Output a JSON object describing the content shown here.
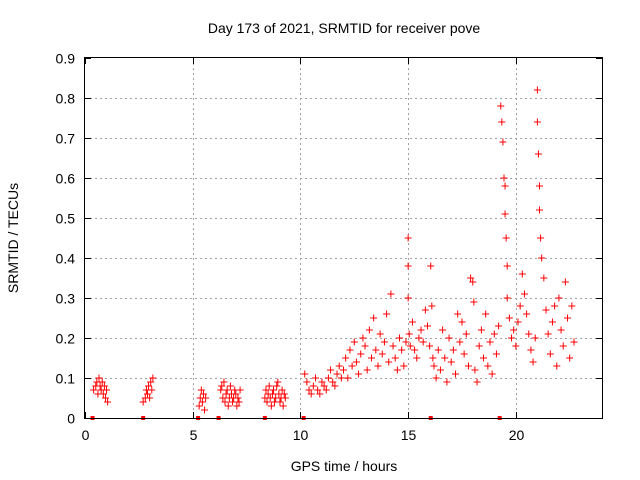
{
  "chart_data": {
    "type": "scatter",
    "title": "Day 173 of 2021, SRMTID for receiver pove",
    "xlabel": "GPS time / hours",
    "ylabel": "SRMTID / TECUs",
    "xlim": [
      0,
      24
    ],
    "ylim": [
      0,
      0.9
    ],
    "x_ticks": [
      0,
      5,
      10,
      15,
      20
    ],
    "x_tick_labels": [
      "0",
      "5",
      "10",
      "15",
      "20"
    ],
    "y_ticks": [
      0,
      0.1,
      0.2,
      0.3,
      0.4,
      0.5,
      0.6,
      0.7,
      0.8,
      0.9
    ],
    "y_tick_labels": [
      "0",
      "0.1",
      "0.2",
      "0.3",
      "0.4",
      "0.5",
      "0.6",
      "0.7",
      "0.8",
      "0.9"
    ],
    "grid": true,
    "marker": "plus",
    "color": "#ff0000",
    "series": [
      {
        "name": "SRMTID",
        "x": [
          0.4,
          0.5,
          0.55,
          0.6,
          0.65,
          0.7,
          0.75,
          0.8,
          0.85,
          0.9,
          0.95,
          1.0,
          1.05,
          2.7,
          2.8,
          2.85,
          2.9,
          2.95,
          3.0,
          3.05,
          3.1,
          3.15,
          5.3,
          5.35,
          5.4,
          5.45,
          5.5,
          5.55,
          5.6,
          6.3,
          6.35,
          6.4,
          6.45,
          6.5,
          6.55,
          6.6,
          6.65,
          6.7,
          6.75,
          6.8,
          6.85,
          6.9,
          6.95,
          7.0,
          7.05,
          7.1,
          7.15,
          7.2,
          8.35,
          8.4,
          8.45,
          8.5,
          8.55,
          8.6,
          8.65,
          8.7,
          8.75,
          8.8,
          8.85,
          8.9,
          8.95,
          9.0,
          9.05,
          9.1,
          9.15,
          9.2,
          9.25,
          9.3,
          10.2,
          10.3,
          10.4,
          10.5,
          10.6,
          10.7,
          10.8,
          10.9,
          11.0,
          11.1,
          11.2,
          11.3,
          11.4,
          11.5,
          11.6,
          11.7,
          11.8,
          11.9,
          12.0,
          12.1,
          12.2,
          12.3,
          12.4,
          12.5,
          12.6,
          12.7,
          12.8,
          12.9,
          13.0,
          13.1,
          13.2,
          13.3,
          13.4,
          13.5,
          13.6,
          13.7,
          13.8,
          13.9,
          14.0,
          14.1,
          14.2,
          14.3,
          14.4,
          14.5,
          14.6,
          14.7,
          14.8,
          14.9,
          15.0,
          15.0,
          15.0,
          15.05,
          15.1,
          15.2,
          15.3,
          15.4,
          15.5,
          15.6,
          15.7,
          15.8,
          15.9,
          16.0,
          16.05,
          16.1,
          16.15,
          16.2,
          16.3,
          16.4,
          16.5,
          16.6,
          16.7,
          16.8,
          16.9,
          17.0,
          17.1,
          17.2,
          17.3,
          17.4,
          17.5,
          17.6,
          17.7,
          17.8,
          17.9,
          18.0,
          18.05,
          18.1,
          18.2,
          18.3,
          18.4,
          18.5,
          18.6,
          18.7,
          18.8,
          18.9,
          19.0,
          19.1,
          19.2,
          19.3,
          19.35,
          19.4,
          19.45,
          19.5,
          19.5,
          19.55,
          19.6,
          19.6,
          19.7,
          19.8,
          19.9,
          20.0,
          20.1,
          20.2,
          20.3,
          20.4,
          20.5,
          20.6,
          20.7,
          20.8,
          20.9,
          21.0,
          21.0,
          21.05,
          21.1,
          21.1,
          21.15,
          21.2,
          21.3,
          21.4,
          21.5,
          21.6,
          21.7,
          21.8,
          21.9,
          22.0,
          22.1,
          22.2,
          22.3,
          22.4,
          22.5,
          22.6,
          22.7
        ],
        "y": [
          0.07,
          0.08,
          0.09,
          0.06,
          0.1,
          0.08,
          0.07,
          0.09,
          0.06,
          0.08,
          0.05,
          0.07,
          0.04,
          0.04,
          0.05,
          0.07,
          0.06,
          0.08,
          0.05,
          0.09,
          0.07,
          0.1,
          0.03,
          0.05,
          0.07,
          0.04,
          0.06,
          0.02,
          0.05,
          0.07,
          0.08,
          0.05,
          0.09,
          0.04,
          0.06,
          0.07,
          0.03,
          0.05,
          0.08,
          0.06,
          0.04,
          0.05,
          0.07,
          0.06,
          0.03,
          0.05,
          0.04,
          0.07,
          0.05,
          0.07,
          0.04,
          0.06,
          0.08,
          0.05,
          0.03,
          0.06,
          0.07,
          0.04,
          0.05,
          0.08,
          0.09,
          0.06,
          0.04,
          0.05,
          0.07,
          0.03,
          0.06,
          0.05,
          0.11,
          0.09,
          0.07,
          0.06,
          0.08,
          0.1,
          0.07,
          0.06,
          0.09,
          0.08,
          0.07,
          0.1,
          0.12,
          0.09,
          0.08,
          0.11,
          0.13,
          0.1,
          0.12,
          0.15,
          0.1,
          0.17,
          0.13,
          0.19,
          0.14,
          0.11,
          0.16,
          0.2,
          0.18,
          0.12,
          0.22,
          0.15,
          0.25,
          0.17,
          0.13,
          0.21,
          0.16,
          0.19,
          0.26,
          0.14,
          0.31,
          0.18,
          0.15,
          0.12,
          0.2,
          0.17,
          0.13,
          0.19,
          0.45,
          0.38,
          0.3,
          0.21,
          0.18,
          0.24,
          0.17,
          0.15,
          0.2,
          0.22,
          0.19,
          0.27,
          0.23,
          0.18,
          0.38,
          0.28,
          0.15,
          0.13,
          0.1,
          0.17,
          0.12,
          0.22,
          0.15,
          0.09,
          0.2,
          0.14,
          0.17,
          0.11,
          0.26,
          0.19,
          0.24,
          0.16,
          0.21,
          0.13,
          0.35,
          0.34,
          0.29,
          0.12,
          0.09,
          0.18,
          0.22,
          0.15,
          0.26,
          0.13,
          0.19,
          0.11,
          0.21,
          0.16,
          0.23,
          0.78,
          0.74,
          0.69,
          0.6,
          0.58,
          0.51,
          0.45,
          0.38,
          0.3,
          0.25,
          0.2,
          0.22,
          0.18,
          0.24,
          0.28,
          0.36,
          0.31,
          0.26,
          0.21,
          0.17,
          0.14,
          0.2,
          0.82,
          0.74,
          0.66,
          0.58,
          0.52,
          0.45,
          0.4,
          0.35,
          0.27,
          0.21,
          0.16,
          0.24,
          0.28,
          0.13,
          0.3,
          0.22,
          0.18,
          0.34,
          0.25,
          0.15,
          0.28,
          0.19
        ]
      }
    ],
    "zero_markers_x": [
      0.35,
      2.7,
      5.25,
      6.2,
      8.35,
      10.15,
      16.05,
      19.25
    ]
  }
}
